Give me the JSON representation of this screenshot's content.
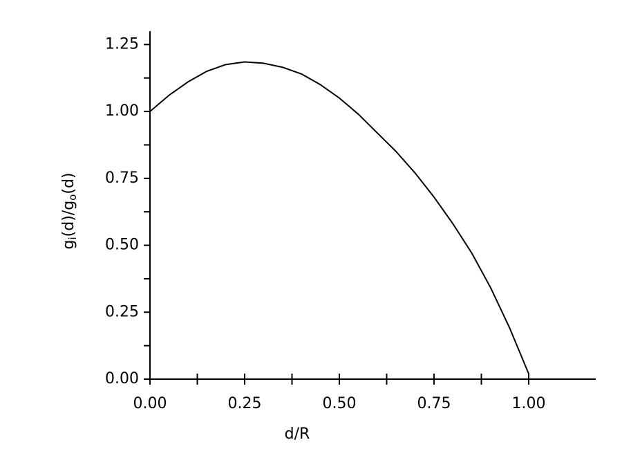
{
  "chart_data": {
    "type": "line",
    "x_label": "d/R",
    "y_label_parts": [
      "g",
      "i",
      "(d)/g",
      "o",
      "(d)"
    ],
    "x": [
      0,
      0.05,
      0.1,
      0.15,
      0.2,
      0.25,
      0.3,
      0.35,
      0.4,
      0.45,
      0.5,
      0.55,
      0.6,
      0.65,
      0.7,
      0.75,
      0.8,
      0.85,
      0.9,
      0.95,
      1.0
    ],
    "values": [
      1.0,
      1.06,
      1.11,
      1.15,
      1.175,
      1.185,
      1.18,
      1.165,
      1.14,
      1.1,
      1.05,
      0.99,
      0.92,
      0.85,
      0.77,
      0.68,
      0.58,
      0.47,
      0.34,
      0.19,
      0.02
    ],
    "color": "#000000",
    "xlim": [
      0,
      1.177
    ],
    "ylim": [
      0,
      1.3
    ],
    "xticks": [
      {
        "value": 0,
        "label": "0.00"
      },
      {
        "value": 0.25,
        "label": "0.25"
      },
      {
        "value": 0.5,
        "label": "0.50"
      },
      {
        "value": 0.75,
        "label": "0.75"
      },
      {
        "value": 1,
        "label": "1.00"
      }
    ],
    "xminorticks": [
      0.125,
      0.375,
      0.625,
      0.875
    ],
    "yticks": [
      {
        "value": 0,
        "label": "0.00"
      },
      {
        "value": 0.25,
        "label": "0.25"
      },
      {
        "value": 0.5,
        "label": "0.50"
      },
      {
        "value": 0.75,
        "label": "0.75"
      },
      {
        "value": 1,
        "label": "1.00"
      },
      {
        "value": 1.25,
        "label": "1.25"
      }
    ],
    "yminorticks": [
      0.125,
      0.375,
      0.625,
      0.875,
      1.125
    ],
    "grid": false
  }
}
